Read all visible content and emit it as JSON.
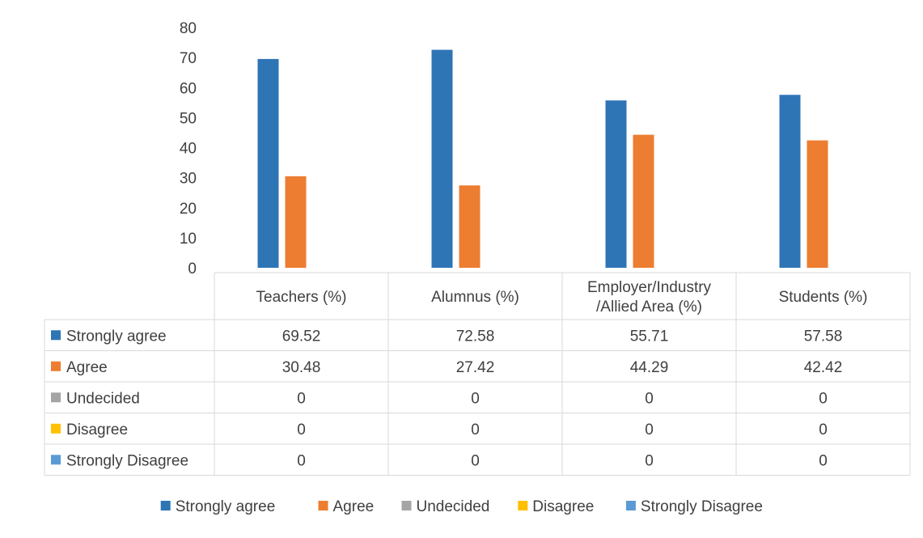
{
  "chart_data": {
    "type": "bar",
    "categories": [
      "Teachers (%)",
      "Alumnus (%)",
      "Employer/Industry /Allied Area (%)",
      "Students (%)"
    ],
    "category_lines": [
      [
        "Teachers (%)"
      ],
      [
        "Alumnus (%)"
      ],
      [
        "Employer/Industry",
        "/Allied Area (%)"
      ],
      [
        "Students (%)"
      ]
    ],
    "series": [
      {
        "name": "Strongly agree",
        "color": "#2e75b6",
        "values": [
          69.52,
          72.58,
          55.71,
          57.58
        ],
        "labels": [
          "69.52",
          "72.58",
          "55.71",
          "57.58"
        ]
      },
      {
        "name": "Agree",
        "color": "#ed7d31",
        "values": [
          30.48,
          27.42,
          44.29,
          42.42
        ],
        "labels": [
          "30.48",
          "27.42",
          "44.29",
          "42.42"
        ]
      },
      {
        "name": "Undecided",
        "color": "#a5a5a5",
        "values": [
          0,
          0,
          0,
          0
        ],
        "labels": [
          "0",
          "0",
          "0",
          "0"
        ]
      },
      {
        "name": "Disagree",
        "color": "#ffc000",
        "values": [
          0,
          0,
          0,
          0
        ],
        "labels": [
          "0",
          "0",
          "0",
          "0"
        ]
      },
      {
        "name": "Strongly Disagree",
        "color": "#5b9bd5",
        "values": [
          0,
          0,
          0,
          0
        ],
        "labels": [
          "0",
          "0",
          "0",
          "0"
        ]
      }
    ],
    "ylim": [
      0,
      80
    ],
    "yticks": [
      "0",
      "10",
      "20",
      "30",
      "40",
      "50",
      "60",
      "70",
      "80"
    ],
    "grid": false,
    "data_table": true,
    "legend": "bottom"
  }
}
